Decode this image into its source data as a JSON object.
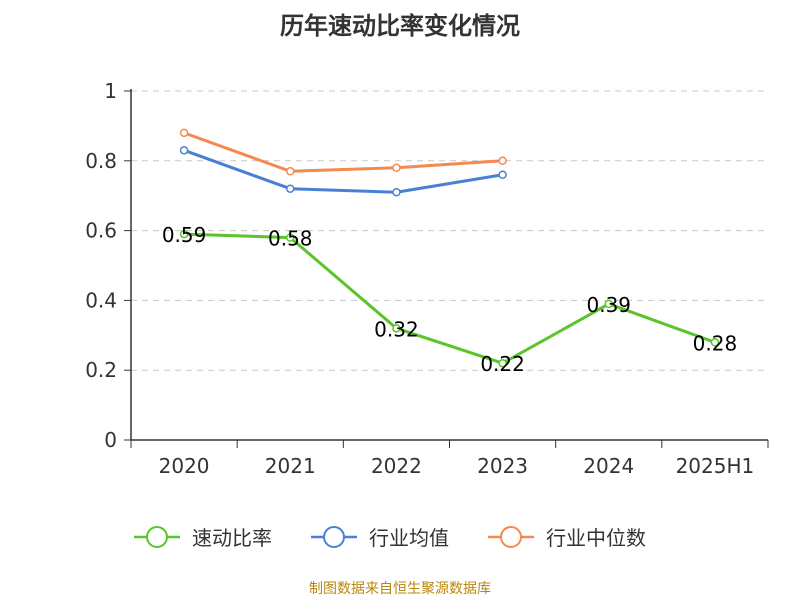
{
  "chart_data": {
    "type": "line",
    "title": "历年速动比率变化情况",
    "categories": [
      "2020",
      "2021",
      "2022",
      "2023",
      "2024",
      "2025H1"
    ],
    "y_ticks": [
      "0",
      "0.2",
      "0.4",
      "0.6",
      "0.8",
      "1"
    ],
    "ylim": [
      0,
      1
    ],
    "grid": true,
    "legend_position": "bottom",
    "series": [
      {
        "name": "速动比率",
        "color": "#5bc42b",
        "values": [
          0.59,
          0.58,
          0.32,
          0.22,
          0.39,
          0.28
        ],
        "labels": [
          "0.59",
          "0.58",
          "0.32",
          "0.22",
          "0.39",
          "0.28"
        ]
      },
      {
        "name": "行业均值",
        "color": "#4a7fd6",
        "values": [
          0.83,
          0.72,
          0.71,
          0.76,
          null,
          null
        ]
      },
      {
        "name": "行业中位数",
        "color": "#f5894f",
        "values": [
          0.88,
          0.77,
          0.78,
          0.8,
          null,
          null
        ]
      }
    ]
  },
  "source_note": "制图数据来自恒生聚源数据库"
}
